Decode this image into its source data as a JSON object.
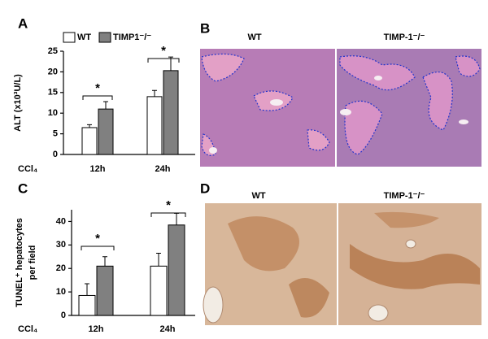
{
  "chart_data": [
    {
      "type": "bar",
      "panel": "A",
      "y_label": [
        "ALT (x10³U/L)"
      ],
      "x_label": "CCl₄",
      "categories": [
        "12h",
        "24h"
      ],
      "series": [
        {
          "name": "WT",
          "color": "#ffffff",
          "values": [
            6.5,
            14
          ],
          "errors": [
            0.7,
            1.5
          ]
        },
        {
          "name": "TIMP1⁻/⁻",
          "color": "#808080",
          "values": [
            11,
            20.3
          ],
          "errors": [
            1.8,
            3.3
          ]
        }
      ],
      "ylim": [
        0,
        25
      ],
      "yticks": [
        0,
        5,
        10,
        15,
        20,
        25
      ],
      "annotations": [
        "*",
        "*"
      ]
    },
    {
      "type": "bar",
      "panel": "C",
      "y_label": [
        "TUNEL⁺ hepatocytes",
        "per field"
      ],
      "x_label": "CCl₄",
      "categories": [
        "12h",
        "24h"
      ],
      "series": [
        {
          "name": "WT",
          "color": "#ffffff",
          "values": [
            8.5,
            21
          ],
          "errors": [
            5,
            5.5
          ]
        },
        {
          "name": "TIMP1⁻/⁻",
          "color": "#808080",
          "values": [
            21,
            38.5
          ],
          "errors": [
            4,
            5
          ]
        }
      ],
      "ylim": [
        0,
        45
      ],
      "yticks": [
        0,
        10,
        20,
        30,
        40
      ],
      "annotations": [
        "*",
        "*"
      ]
    }
  ],
  "images": [
    {
      "panel": "B",
      "labels": [
        "WT",
        "TIMP-1⁻/⁻"
      ]
    },
    {
      "panel": "D",
      "labels": [
        "WT",
        "TIMP-1⁻/⁻"
      ]
    }
  ]
}
